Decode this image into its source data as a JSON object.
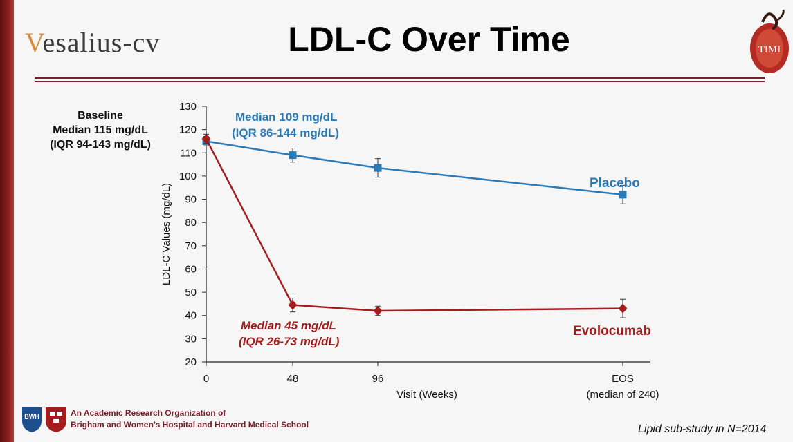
{
  "slide": {
    "title": "LDL-C Over Time",
    "logo_left_initial": "V",
    "logo_left_rest": "esalius-cv",
    "logo_right_text": "TIMI",
    "baseline_note": [
      "Baseline",
      "Median 115 mg/dL",
      "(IQR 94-143 mg/dL)"
    ],
    "footer_org": [
      "An Academic Research Organization of",
      "Brigham and Women’s Hospital and Harvard Medical School"
    ],
    "footer_logo_text": "BWH",
    "substudy_note": "Lipid sub-study in N=2014"
  },
  "colors": {
    "placebo": "#2a7ab8",
    "evolocumab": "#a51c1c",
    "accent": "#7a1c2a"
  },
  "chart_data": {
    "type": "line",
    "ylabel": "LDL-C Values (mg/dL)",
    "xlabel": "Visit (Weeks)",
    "ylim": [
      20,
      130
    ],
    "yticks": [
      20,
      30,
      40,
      50,
      60,
      70,
      80,
      90,
      100,
      110,
      120,
      130
    ],
    "x": [
      0,
      48,
      96,
      240
    ],
    "xtick_labels": [
      "0",
      "48",
      "96",
      "EOS"
    ],
    "xtick_sublabel": "(median of 240)",
    "series": [
      {
        "name": "Placebo",
        "color": "#2a7ab8",
        "marker": "square",
        "values": [
          115,
          109,
          103.5,
          92
        ],
        "errors": [
          2,
          3,
          4,
          4
        ],
        "annotation": [
          "Median 109 mg/dL",
          "(IQR 86-144 mg/dL)"
        ]
      },
      {
        "name": "Evolocumab",
        "color": "#a51c1c",
        "marker": "diamond",
        "values": [
          116,
          44.5,
          42,
          43
        ],
        "errors": [
          2,
          3,
          2,
          4
        ],
        "annotation": [
          "Median 45 mg/dL",
          "(IQR 26-73 mg/dL)"
        ]
      }
    ]
  }
}
